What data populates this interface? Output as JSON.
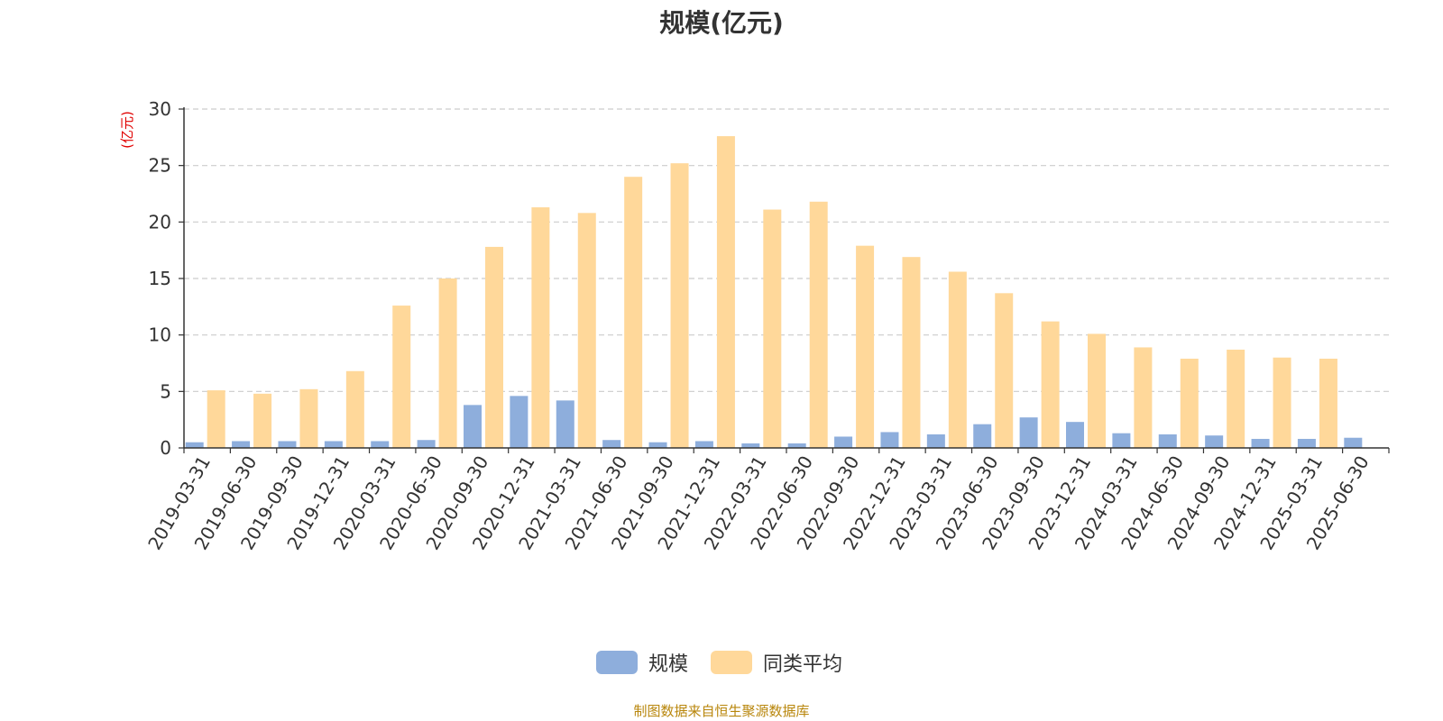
{
  "chart_data": {
    "type": "bar",
    "title": "规模(亿元)",
    "ylabel": "(亿元)",
    "ylim": [
      0,
      30
    ],
    "yticks": [
      0,
      5,
      10,
      15,
      20,
      25,
      30
    ],
    "grid": true,
    "legend_position": "bottom-center",
    "categories": [
      "2019-03-31",
      "2019-06-30",
      "2019-09-30",
      "2019-12-31",
      "2020-03-31",
      "2020-06-30",
      "2020-09-30",
      "2020-12-31",
      "2021-03-31",
      "2021-06-30",
      "2021-09-30",
      "2021-12-31",
      "2022-03-31",
      "2022-06-30",
      "2022-09-30",
      "2022-12-31",
      "2023-03-31",
      "2023-06-30",
      "2023-09-30",
      "2023-12-31",
      "2024-03-31",
      "2024-06-30",
      "2024-09-30",
      "2024-12-31",
      "2025-03-31",
      "2025-06-30"
    ],
    "series": [
      {
        "name": "规模",
        "color": "#8eaedc",
        "values": [
          0.5,
          0.6,
          0.6,
          0.6,
          0.6,
          0.7,
          3.8,
          4.6,
          4.2,
          0.7,
          0.5,
          0.6,
          0.4,
          0.4,
          1.0,
          1.4,
          1.2,
          2.1,
          2.7,
          2.3,
          1.3,
          1.2,
          1.1,
          0.8,
          0.8,
          0.9
        ]
      },
      {
        "name": "同类平均",
        "color": "#ffd89a",
        "values": [
          5.1,
          4.8,
          5.2,
          6.8,
          12.6,
          15.0,
          17.8,
          21.3,
          20.8,
          24.0,
          25.2,
          27.6,
          21.1,
          21.8,
          17.9,
          16.9,
          15.6,
          13.7,
          11.2,
          10.1,
          8.9,
          7.9,
          8.7,
          8.0,
          7.9,
          null
        ]
      }
    ]
  },
  "source_note": "制图数据来自恒生聚源数据库"
}
